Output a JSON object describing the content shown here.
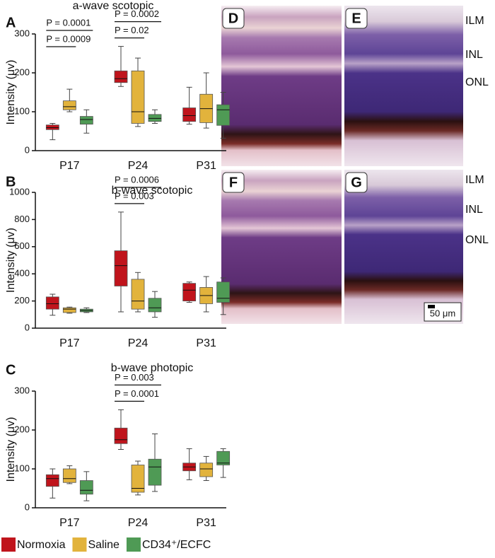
{
  "chart_data": [
    {
      "type": "box",
      "panel_label": "A",
      "title": "a-wave scotopic",
      "y_label": "Intensity (μv)",
      "categories": [
        "P17",
        "P24",
        "P31"
      ],
      "ylim": [
        0,
        300
      ],
      "yticks": [
        0,
        100,
        200,
        300
      ],
      "series": [
        {
          "name": "Normoxia",
          "color": "#c0141c",
          "values": [
            {
              "min": 28,
              "q1": 54,
              "median": 59,
              "q3": 66,
              "max": 70
            },
            {
              "min": 165,
              "q1": 175,
              "median": 185,
              "q3": 205,
              "max": 268
            },
            {
              "min": 68,
              "q1": 75,
              "median": 90,
              "q3": 110,
              "max": 163
            }
          ]
        },
        {
          "name": "Saline",
          "color": "#e2b33c",
          "values": [
            {
              "min": 100,
              "q1": 105,
              "median": 113,
              "q3": 128,
              "max": 158
            },
            {
              "min": 62,
              "q1": 70,
              "median": 100,
              "q3": 205,
              "max": 238
            },
            {
              "min": 58,
              "q1": 72,
              "median": 108,
              "q3": 145,
              "max": 200
            }
          ]
        },
        {
          "name": "CD34⁺/ECFC",
          "color": "#4f9a55",
          "values": [
            {
              "min": 45,
              "q1": 68,
              "median": 80,
              "q3": 88,
              "max": 105
            },
            {
              "min": 70,
              "q1": 75,
              "median": 83,
              "q3": 93,
              "max": 105
            },
            {
              "min": 32,
              "q1": 65,
              "median": 105,
              "q3": 118,
              "max": 150
            }
          ]
        }
      ],
      "annotations": [
        {
          "text": "P = 0.0001",
          "category": "P17"
        },
        {
          "text": "P = 0.0009",
          "category": "P17"
        },
        {
          "text": "P = 0.0002",
          "category": "P24"
        },
        {
          "text": "P = 0.02",
          "category": "P24"
        }
      ]
    },
    {
      "type": "box",
      "panel_label": "B",
      "title": "b-wave scotopic",
      "y_label": "Intensity (μv)",
      "categories": [
        "P17",
        "P24",
        "P31"
      ],
      "ylim": [
        0,
        1000
      ],
      "yticks": [
        0,
        200,
        400,
        600,
        800,
        1000
      ],
      "series": [
        {
          "name": "Normoxia",
          "color": "#c0141c",
          "values": [
            {
              "min": 95,
              "q1": 140,
              "median": 180,
              "q3": 230,
              "max": 250
            },
            {
              "min": 120,
              "q1": 310,
              "median": 460,
              "q3": 570,
              "max": 855
            },
            {
              "min": 190,
              "q1": 200,
              "median": 280,
              "q3": 330,
              "max": 340
            }
          ]
        },
        {
          "name": "Saline",
          "color": "#e2b33c",
          "values": [
            {
              "min": 110,
              "q1": 115,
              "median": 140,
              "q3": 150,
              "max": 155
            },
            {
              "min": 120,
              "q1": 140,
              "median": 200,
              "q3": 360,
              "max": 410
            },
            {
              "min": 120,
              "q1": 180,
              "median": 240,
              "q3": 300,
              "max": 380
            }
          ]
        },
        {
          "name": "CD34⁺/ECFC",
          "color": "#4f9a55",
          "values": [
            {
              "min": 115,
              "q1": 120,
              "median": 130,
              "q3": 140,
              "max": 150
            },
            {
              "min": 80,
              "q1": 120,
              "median": 150,
              "q3": 220,
              "max": 270
            },
            {
              "min": 100,
              "q1": 190,
              "median": 220,
              "q3": 340,
              "max": 370
            }
          ]
        }
      ],
      "annotations": [
        {
          "text": "P = 0.0006",
          "category": "P24"
        },
        {
          "text": "P = 0.003",
          "category": "P24"
        }
      ]
    },
    {
      "type": "box",
      "panel_label": "C",
      "title": "b-wave photopic",
      "y_label": "Intensity (μv)",
      "categories": [
        "P17",
        "P24",
        "P31"
      ],
      "ylim": [
        0,
        300
      ],
      "yticks": [
        0,
        100,
        200,
        300
      ],
      "series": [
        {
          "name": "Normoxia",
          "color": "#c0141c",
          "values": [
            {
              "min": 25,
              "q1": 55,
              "median": 75,
              "q3": 85,
              "max": 100
            },
            {
              "min": 150,
              "q1": 165,
              "median": 175,
              "q3": 205,
              "max": 252
            },
            {
              "min": 72,
              "q1": 95,
              "median": 105,
              "q3": 115,
              "max": 152
            }
          ]
        },
        {
          "name": "Saline",
          "color": "#e2b33c",
          "values": [
            {
              "min": 62,
              "q1": 65,
              "median": 75,
              "q3": 100,
              "max": 108
            },
            {
              "min": 33,
              "q1": 40,
              "median": 50,
              "q3": 110,
              "max": 120
            },
            {
              "min": 70,
              "q1": 80,
              "median": 100,
              "q3": 115,
              "max": 132
            }
          ]
        },
        {
          "name": "CD34⁺/ECFC",
          "color": "#4f9a55",
          "values": [
            {
              "min": 18,
              "q1": 35,
              "median": 45,
              "q3": 70,
              "max": 93
            },
            {
              "min": 42,
              "q1": 58,
              "median": 105,
              "q3": 125,
              "max": 190
            },
            {
              "min": 78,
              "q1": 110,
              "median": 115,
              "q3": 145,
              "max": 152
            }
          ]
        }
      ],
      "annotations": [
        {
          "text": "P = 0.003",
          "category": "P24"
        },
        {
          "text": "P = 0.0001",
          "category": "P24"
        }
      ]
    }
  ],
  "micrographs": {
    "panels": [
      "D",
      "E",
      "F",
      "G"
    ],
    "layers": [
      "ILM",
      "INL",
      "ONL"
    ],
    "scale_bar": "50 μm"
  }
}
